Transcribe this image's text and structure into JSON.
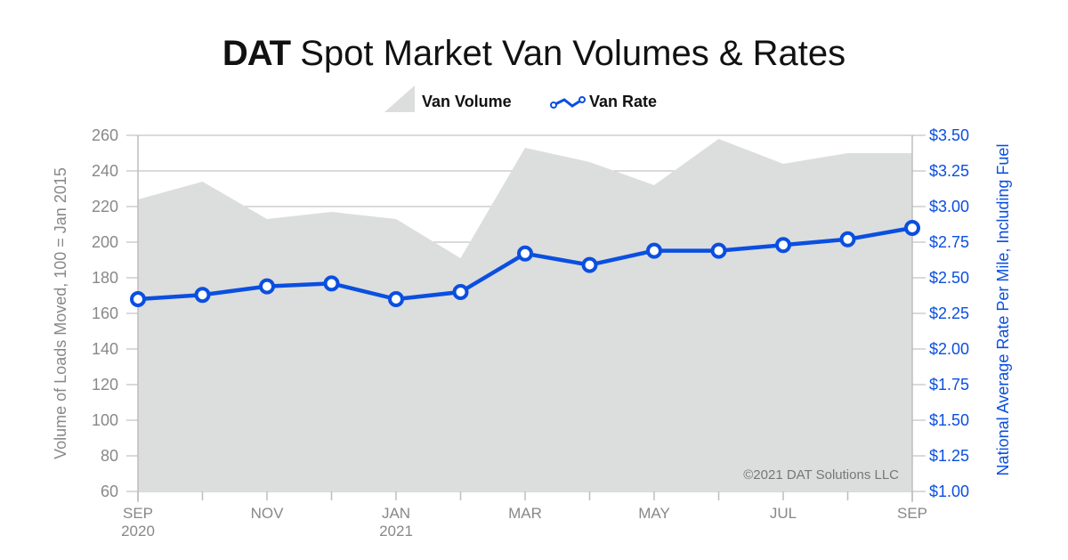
{
  "chart_data": {
    "type": "area+line",
    "brand": "DAT",
    "title": "Spot Market Van Volumes & Rates",
    "categories": [
      "SEP 2020",
      "OCT 2020",
      "NOV 2020",
      "DEC 2020",
      "JAN 2021",
      "FEB 2021",
      "MAR 2021",
      "APR 2021",
      "MAY 2021",
      "JUN 2021",
      "JUL 2021",
      "AUG 2021",
      "SEP 2021"
    ],
    "x_tick_labels": [
      {
        "index": 0,
        "lines": [
          "SEP",
          "2020"
        ]
      },
      {
        "index": 2,
        "lines": [
          "NOV"
        ]
      },
      {
        "index": 4,
        "lines": [
          "JAN",
          "2021"
        ]
      },
      {
        "index": 6,
        "lines": [
          "MAR"
        ]
      },
      {
        "index": 8,
        "lines": [
          "MAY"
        ]
      },
      {
        "index": 10,
        "lines": [
          "JUL"
        ]
      },
      {
        "index": 12,
        "lines": [
          "SEP"
        ]
      }
    ],
    "series": [
      {
        "name": "Van Volume",
        "type": "area",
        "axis": "left",
        "color": "#dcdddd",
        "values": [
          224,
          234,
          213,
          217,
          213,
          191,
          253,
          245,
          232,
          258,
          244,
          250,
          250
        ]
      },
      {
        "name": "Van Rate",
        "type": "line",
        "axis": "right",
        "color": "#0a4fe0",
        "values": [
          2.35,
          2.38,
          2.44,
          2.46,
          2.35,
          2.4,
          2.67,
          2.59,
          2.69,
          2.69,
          2.73,
          2.77,
          2.85
        ]
      }
    ],
    "ylabel_left": "Volume of Loads Moved, 100 = Jan 2015",
    "ylim_left": [
      60,
      260
    ],
    "yticks_left": [
      60,
      80,
      100,
      120,
      140,
      160,
      180,
      200,
      220,
      240,
      260
    ],
    "ylabel_right": "National Average Rate Per Mile, Including Fuel",
    "ylim_right": [
      1.0,
      3.5
    ],
    "yticks_right": [
      "$1.00",
      "$1.25",
      "$1.50",
      "$1.75",
      "$2.00",
      "$2.25",
      "$2.50",
      "$2.75",
      "$3.00",
      "$3.25",
      "$3.50"
    ],
    "grid": true,
    "legend": "top-center",
    "annotation": "©2021 DAT Solutions LLC"
  }
}
